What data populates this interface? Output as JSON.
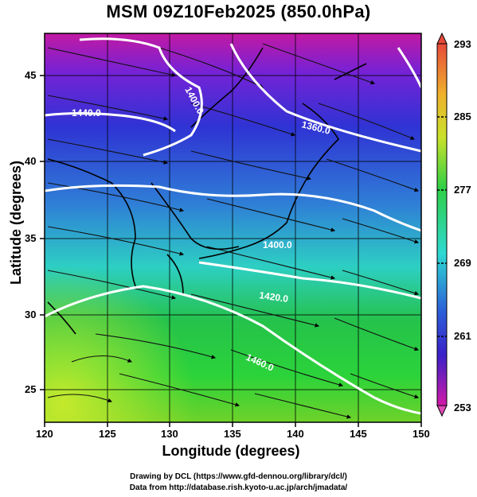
{
  "title": "MSM 09Z10Feb2025 (850.0hPa)",
  "xlabel": "Longitude (degrees)",
  "ylabel": "Latitude  (degrees)",
  "xticks": [
    "120",
    "125",
    "130",
    "135",
    "140",
    "145",
    "150"
  ],
  "yticks": [
    "45",
    "40",
    "35",
    "30",
    "25"
  ],
  "colorbar_ticks": [
    "293",
    "285",
    "277",
    "269",
    "261",
    "253"
  ],
  "contour_labels": [
    "1440.0",
    "1400.0",
    "1360.0",
    "1400.0",
    "1420.0",
    "1460.0"
  ],
  "credits": {
    "line1": "Drawing by DCL (https://www.gfd-dennou.org/library/dcl/)",
    "line2": "Data from http://database.rish.kyoto-u.ac.jp/arch/jmadata/"
  },
  "map": {
    "lon_range": [
      120,
      150
    ],
    "lat_range": [
      22.5,
      47.5
    ],
    "field": "temperature shading with geopotential height contours and wind streamlines",
    "colorbar_range": [
      253,
      293
    ]
  },
  "colors": {
    "magenta": "#d4178f",
    "blue": "#2b2fd6",
    "cyan": "#33d7d3",
    "green": "#23c935",
    "yellow": "#e7e41b",
    "red": "#e63131"
  }
}
